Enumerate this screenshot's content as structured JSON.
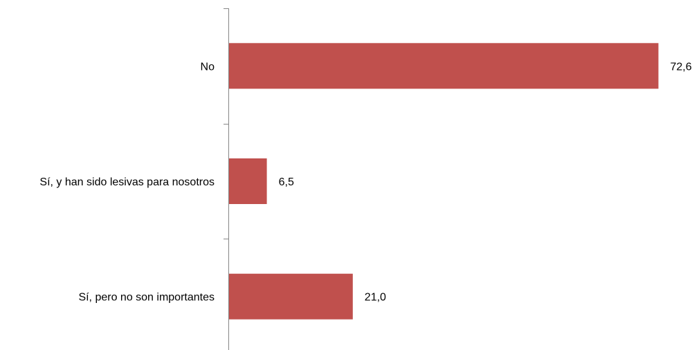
{
  "chart_data": {
    "type": "bar",
    "orientation": "horizontal",
    "title": "",
    "xlabel": "",
    "ylabel": "",
    "categories": [
      "No",
      "Sí, y han sido lesivas para nosotros",
      "Sí, pero no son importantes"
    ],
    "values": [
      72.6,
      6.5,
      21.0
    ],
    "value_labels": [
      "72,6",
      "6,5",
      "21,0"
    ],
    "xlim": [
      0,
      75
    ],
    "grid": false,
    "legend": "none",
    "bar_color": "#c0504d",
    "axis_color": "#868686"
  }
}
